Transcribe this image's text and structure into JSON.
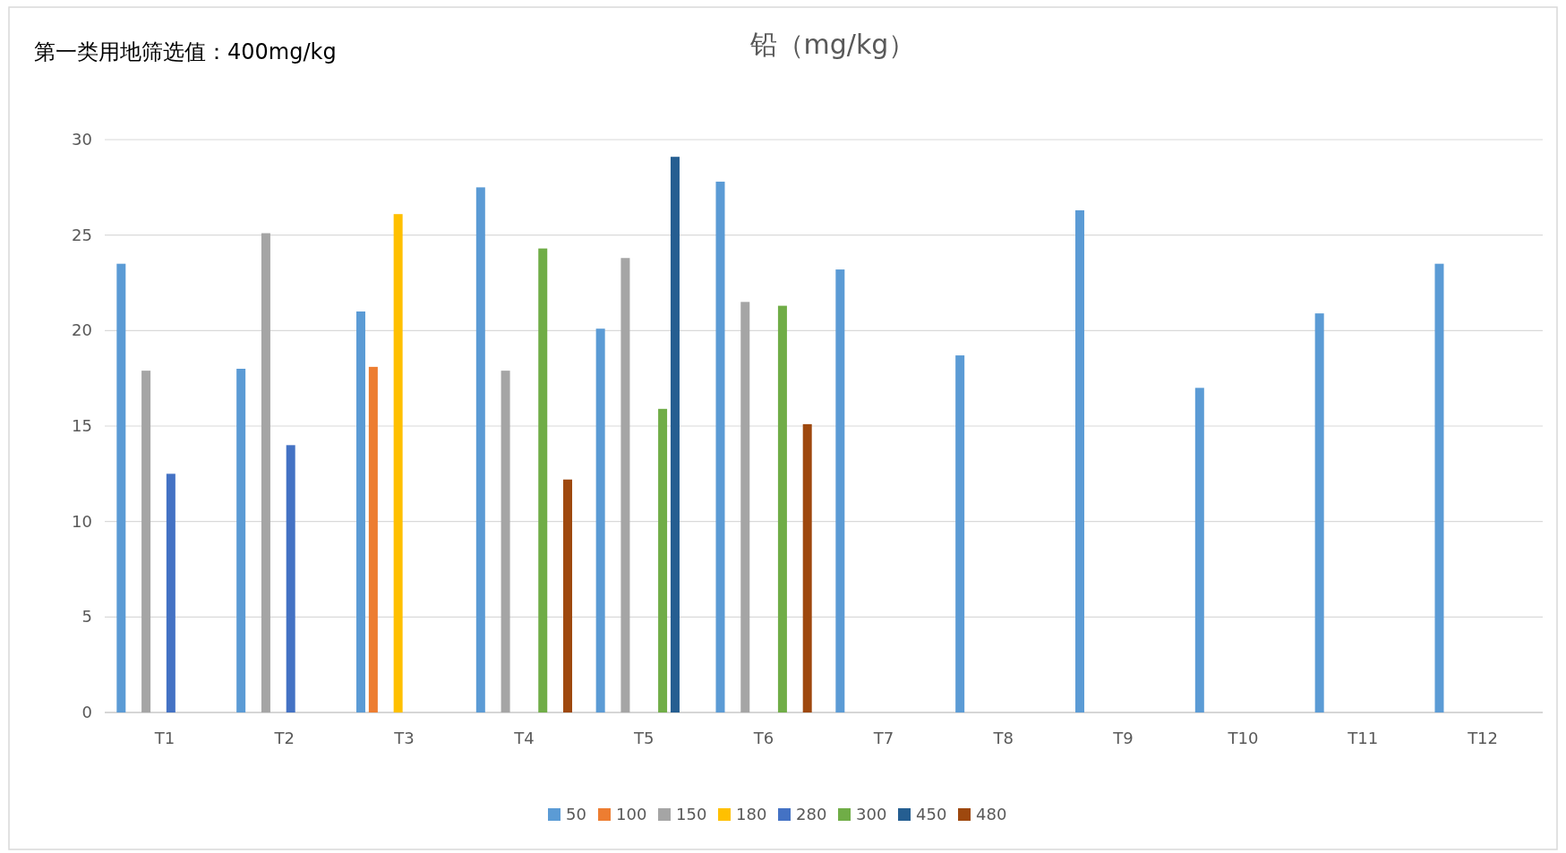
{
  "chart_data": {
    "type": "bar",
    "title": "铅（mg/kg）",
    "annotations": [
      "第一类用地筛选值：400mg/kg"
    ],
    "categories": [
      "T1",
      "T2",
      "T3",
      "T4",
      "T5",
      "T6",
      "T7",
      "T8",
      "T9",
      "T10",
      "T11",
      "T12"
    ],
    "ylim": [
      0,
      30
    ],
    "yticks": [
      0,
      5,
      10,
      15,
      20,
      25,
      30
    ],
    "grid": "y",
    "legend": "bottom",
    "series": [
      {
        "name": "50",
        "color": "#5b9bd5",
        "values": [
          23.5,
          18.0,
          21.0,
          27.5,
          20.1,
          27.8,
          23.2,
          18.7,
          26.3,
          17.0,
          20.9,
          23.5
        ]
      },
      {
        "name": "100",
        "color": "#ed7d31",
        "values": [
          null,
          null,
          18.1,
          null,
          null,
          null,
          null,
          null,
          null,
          null,
          null,
          null
        ]
      },
      {
        "name": "150",
        "color": "#a5a5a5",
        "values": [
          17.9,
          25.1,
          null,
          17.9,
          23.8,
          21.5,
          null,
          null,
          null,
          null,
          null,
          null
        ]
      },
      {
        "name": "180",
        "color": "#ffc000",
        "values": [
          null,
          null,
          26.1,
          null,
          null,
          null,
          null,
          null,
          null,
          null,
          null,
          null
        ]
      },
      {
        "name": "280",
        "color": "#4472c4",
        "values": [
          12.5,
          14.0,
          null,
          null,
          null,
          null,
          null,
          null,
          null,
          null,
          null,
          null
        ]
      },
      {
        "name": "300",
        "color": "#70ad47",
        "values": [
          null,
          null,
          null,
          24.3,
          15.9,
          21.3,
          null,
          null,
          null,
          null,
          null,
          null
        ]
      },
      {
        "name": "450",
        "color": "#255e91",
        "values": [
          null,
          null,
          null,
          null,
          29.1,
          null,
          null,
          null,
          null,
          null,
          null,
          null
        ]
      },
      {
        "name": "480",
        "color": "#9e480e",
        "values": [
          null,
          null,
          null,
          12.2,
          null,
          15.1,
          null,
          null,
          null,
          null,
          null,
          null
        ]
      }
    ]
  }
}
